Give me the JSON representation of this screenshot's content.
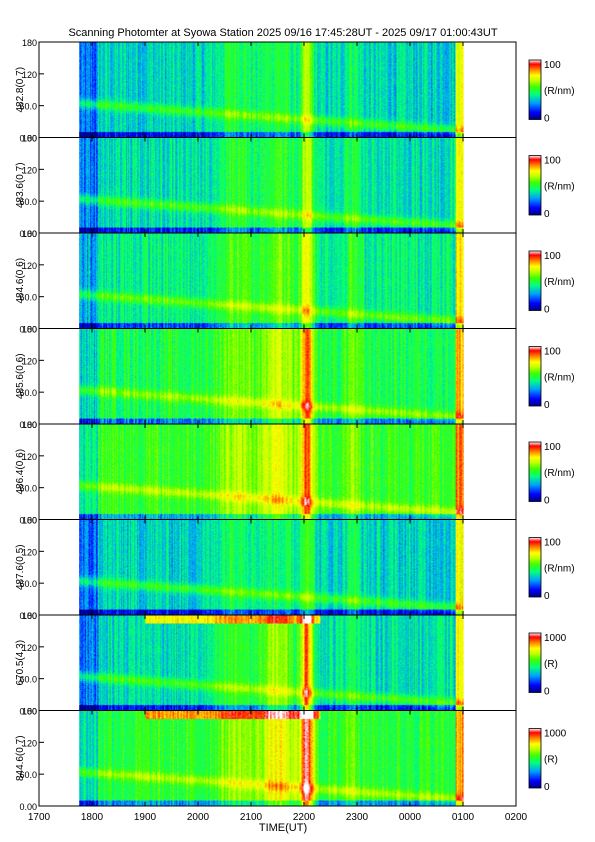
{
  "chart_data": {
    "type": "heatmap",
    "title": "Scanning Photomter at Syowa Station 2025 09/16 17:45:28UT - 2025 09/17 01:00:43UT",
    "xlabel": "TIME(UT)",
    "x_tick_labels": [
      "1700",
      "1800",
      "1900",
      "2000",
      "2100",
      "2200",
      "2300",
      "0000",
      "0100",
      "0200"
    ],
    "x_range_hours": [
      17,
      26
    ],
    "data_range_hours": [
      17.758,
      25.012
    ],
    "y_tick_labels": [
      "0.00",
      "60.0",
      "120",
      "180"
    ],
    "ylim": [
      0,
      180
    ],
    "colormap": [
      "#000080",
      "#0000ff",
      "#00a0ff",
      "#00ff80",
      "#40ff00",
      "#c8ff00",
      "#ffff00",
      "#ff8000",
      "#ff0000",
      "#ffffff"
    ],
    "panels": [
      {
        "ylabel": "482.8(0.7)",
        "cbar_max": "100",
        "cbar_min": "0",
        "cbar_unit": "(R/nm)",
        "level": 0.28,
        "storm": 0.45
      },
      {
        "ylabel": "483.6(0.7)",
        "cbar_max": "100",
        "cbar_min": "0",
        "cbar_unit": "(R/nm)",
        "level": 0.3,
        "storm": 0.5
      },
      {
        "ylabel": "484.6(0.6)",
        "cbar_max": "100",
        "cbar_min": "0",
        "cbar_unit": "(R/nm)",
        "level": 0.33,
        "storm": 0.6
      },
      {
        "ylabel": "485.6(0.6)",
        "cbar_max": "100",
        "cbar_min": "0",
        "cbar_unit": "(R/nm)",
        "level": 0.38,
        "storm": 0.75
      },
      {
        "ylabel": "486.4(0.6)",
        "cbar_max": "100",
        "cbar_min": "0",
        "cbar_unit": "(R/nm)",
        "level": 0.42,
        "storm": 0.75
      },
      {
        "ylabel": "487.6(0.5)",
        "cbar_max": "100",
        "cbar_min": "0",
        "cbar_unit": "(R/nm)",
        "level": 0.28,
        "storm": 0.35
      },
      {
        "ylabel": "670.5(4.3)",
        "cbar_max": "1000",
        "cbar_min": "0",
        "cbar_unit": "(R)",
        "level": 0.3,
        "storm": 0.9
      },
      {
        "ylabel": "844.6(0.7)",
        "cbar_max": "1000",
        "cbar_min": "0",
        "cbar_unit": "(R)",
        "level": 0.4,
        "storm": 1.0
      }
    ]
  }
}
